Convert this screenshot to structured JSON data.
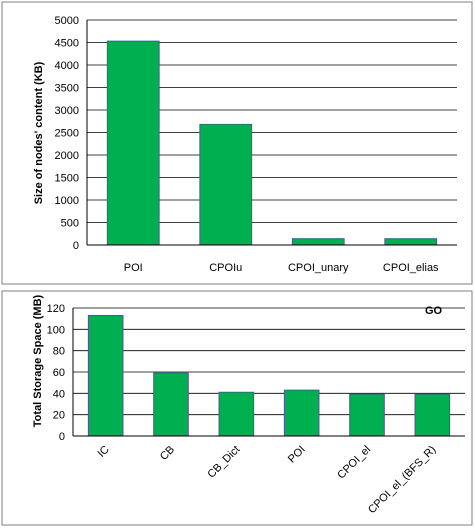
{
  "chart_data": [
    {
      "type": "bar",
      "title": "",
      "xlabel": "",
      "ylabel": "Size of nodes' content (KB)",
      "categories": [
        "POI",
        "CPOIu",
        "CPOI_unary",
        "CPOI_elias"
      ],
      "values": [
        4530,
        2680,
        140,
        140
      ],
      "ylim": [
        0,
        5000
      ],
      "yticks": [
        0,
        500,
        1000,
        1500,
        2000,
        2500,
        3000,
        3500,
        4000,
        4500,
        5000
      ],
      "grid": true,
      "bar_color": "#00b050"
    },
    {
      "type": "bar",
      "title": "",
      "xlabel": "",
      "ylabel": "Total Storage Space (MB)",
      "annotation": "GO",
      "categories": [
        "IC",
        "CB",
        "CB_Dict",
        "POI",
        "CPOI_el",
        "CPOI_el_(BFS_R)"
      ],
      "values": [
        113,
        59,
        41,
        43,
        39,
        39
      ],
      "ylim": [
        0,
        120
      ],
      "yticks": [
        0,
        20,
        40,
        60,
        80,
        100,
        120
      ],
      "grid": true,
      "bar_color": "#00b050"
    }
  ]
}
